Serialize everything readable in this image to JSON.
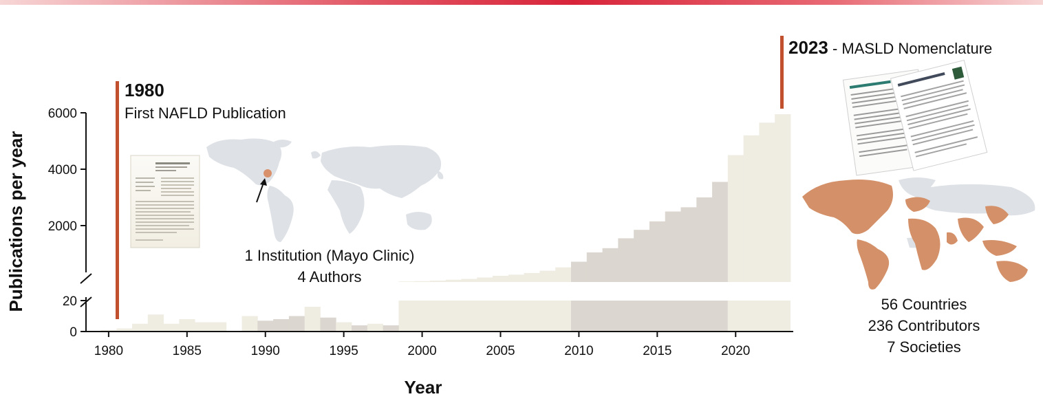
{
  "colors": {
    "accent": "#c1502e",
    "marker": "#d8916b",
    "bar_light": "#efece2",
    "bar_dark": "#dbd6cf",
    "map_land": "#dee2e6",
    "map_highlight": "#d49169",
    "top_gradient": [
      "#f4c3c3",
      "#d8243a"
    ]
  },
  "chart_data": {
    "type": "bar",
    "title": "",
    "xlabel": "Year",
    "ylabel": "Publications per year",
    "broken_y_axis": true,
    "lower_ylim": [
      0,
      20
    ],
    "upper_ylim": [
      0,
      6000
    ],
    "x_ticks": [
      1980,
      1985,
      1990,
      1995,
      2000,
      2005,
      2010,
      2015,
      2020
    ],
    "y_ticks_lower": [
      0,
      20
    ],
    "y_ticks_upper": [
      2000,
      4000,
      6000
    ],
    "years": [
      1980,
      1981,
      1982,
      1983,
      1984,
      1985,
      1986,
      1987,
      1988,
      1989,
      1990,
      1991,
      1992,
      1993,
      1994,
      1995,
      1996,
      1997,
      1998,
      1999,
      2000,
      2001,
      2002,
      2003,
      2004,
      2005,
      2006,
      2007,
      2008,
      2009,
      2010,
      2011,
      2012,
      2013,
      2014,
      2015,
      2016,
      2017,
      2018,
      2019,
      2020,
      2021,
      2022,
      2023
    ],
    "values": [
      1,
      2,
      5,
      11,
      5,
      8,
      6,
      6,
      0,
      10,
      7,
      8,
      10,
      16,
      9,
      6,
      4,
      5,
      4,
      20,
      30,
      50,
      80,
      110,
      160,
      220,
      260,
      320,
      400,
      520,
      720,
      1050,
      1200,
      1550,
      1850,
      2150,
      2500,
      2650,
      3000,
      3550,
      4500,
      5200,
      5650,
      5950
    ],
    "shade_bands": [
      {
        "start": 1999,
        "end": 2009,
        "shade": "light"
      },
      {
        "start": 2010,
        "end": 2019,
        "shade": "dark"
      },
      {
        "start": 2020,
        "end": 2023,
        "shade": "light"
      }
    ],
    "grid": false,
    "legend": "none"
  },
  "annotations": {
    "start": {
      "year": "1980",
      "label": "First NAFLD Publication",
      "institution_line": "1 Institution (Mayo Clinic)",
      "authors_line": "4 Authors"
    },
    "end": {
      "year": "2023",
      "separator": " - ",
      "label": "MASLD Nomenclature",
      "countries_line": "56 Countries",
      "contributors_line": "236 Contributors",
      "societies_line": "7 Societies"
    }
  },
  "icons": [
    "paper-thumbnail-1980",
    "paper-stack-2023",
    "world-map-mayo",
    "world-map-contributors"
  ]
}
